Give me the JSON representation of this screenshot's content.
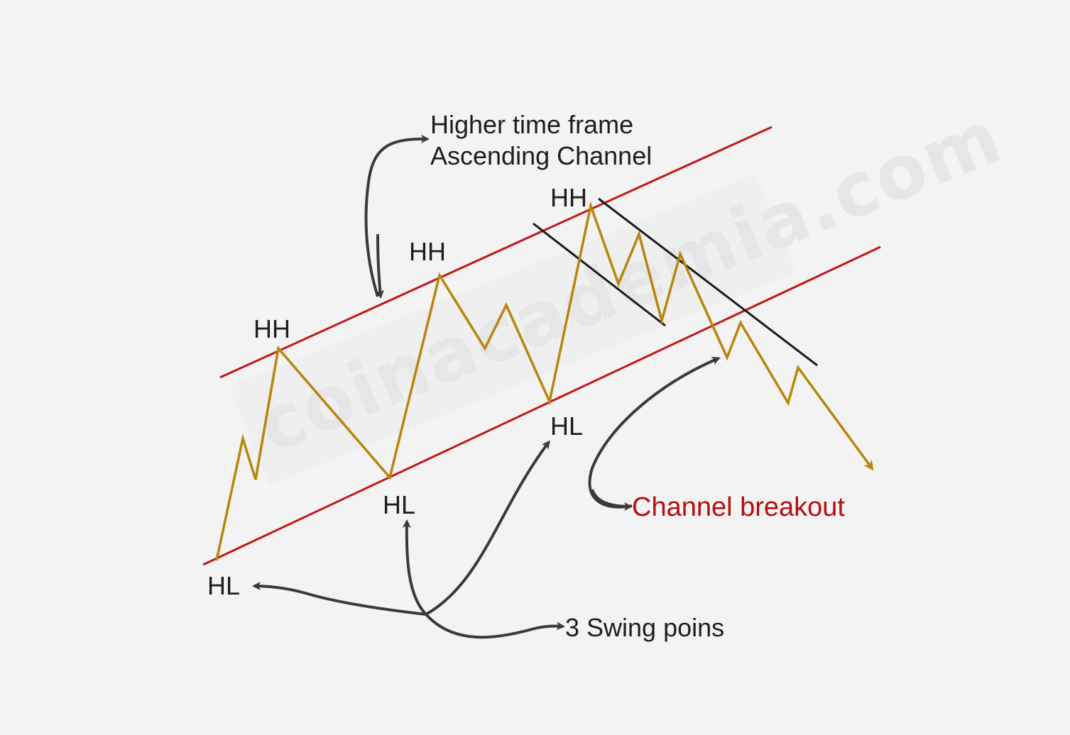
{
  "watermark": "coinacademia.com",
  "title": {
    "line1": "Higher time frame",
    "line2": "Ascending Channel"
  },
  "swing_labels": {
    "hh1": "HH",
    "hh2": "HH",
    "hh3": "HH",
    "hl1": "HL",
    "hl2": "HL",
    "hl3": "HL"
  },
  "annotations": {
    "swing_points": "3 Swing poins",
    "breakout": "Channel breakout"
  },
  "colors": {
    "background": "#f3f3f3",
    "channel": "#c01818",
    "price": "#b8860b",
    "trendline": "#1a1a1a",
    "arrow": "#3a3a3a",
    "breakout_text": "#b50f0f"
  }
}
